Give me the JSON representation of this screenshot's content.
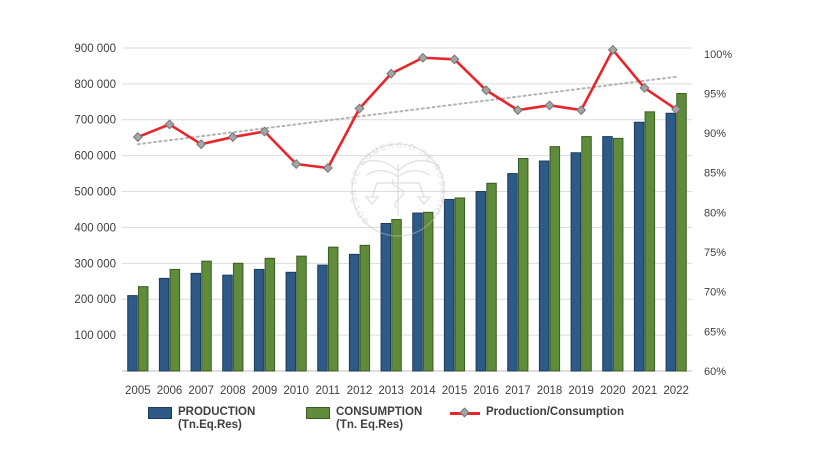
{
  "page": {
    "background": "#ffffff",
    "title": ""
  },
  "chart_data": {
    "type": "bar",
    "subtype": "combo-bar-line",
    "title": "",
    "categories": [
      "2005",
      "2006",
      "2007",
      "2008",
      "2009",
      "2010",
      "2011",
      "2012",
      "2013",
      "2014",
      "2015",
      "2016",
      "2017",
      "2018",
      "2019",
      "2020",
      "2021",
      "2022"
    ],
    "series": [
      {
        "name": "PRODUCTION (Tn.Eq.Res)",
        "type": "bar",
        "axis": "left",
        "color": "#2d5a87",
        "border_color": "#1c3b5a",
        "values": [
          210000,
          258000,
          272000,
          267000,
          283000,
          275000,
          295000,
          325000,
          411000,
          440000,
          478000,
          500000,
          550000,
          585000,
          608000,
          653000,
          693000,
          718000
        ]
      },
      {
        "name": "CONSUMPTION (Tn. Eq.Res)",
        "type": "bar",
        "axis": "left",
        "color": "#5f8c3a",
        "border_color": "#3c5a22",
        "values": [
          235000,
          283000,
          306000,
          300000,
          314000,
          320000,
          345000,
          350000,
          422000,
          442000,
          482000,
          523000,
          592000,
          625000,
          653000,
          648000,
          722000,
          773000
        ]
      },
      {
        "name": "Production/Consumption",
        "type": "line",
        "axis": "right",
        "color": "#e8252a",
        "marker": "diamond",
        "marker_fill": "#a5a5a5",
        "marker_stroke": "#757575",
        "values_percent": [
          89.5,
          91.1,
          88.6,
          89.5,
          90.2,
          86.1,
          85.6,
          93.1,
          97.5,
          99.5,
          99.3,
          95.4,
          92.9,
          93.5,
          92.9,
          100.5,
          95.7,
          93.0
        ]
      }
    ],
    "trendline": {
      "style": "dotted",
      "color": "#b3b3b3",
      "axis": "right",
      "start_percent": 88.6,
      "end_percent": 97.1
    },
    "left_axis": {
      "min": 0,
      "max": 950000,
      "tick_step": 100000,
      "tick_labels": [
        "100 000",
        "200 000",
        "300 000",
        "400 000",
        "500 000",
        "600 000",
        "700 000",
        "800 000",
        "900 000"
      ]
    },
    "right_axis": {
      "min": 60,
      "max": 103,
      "tick_step": 5,
      "tick_labels": [
        "60%",
        "65%",
        "70%",
        "75%",
        "80%",
        "85%",
        "90%",
        "95%",
        "100%"
      ]
    },
    "grid": "horizontal",
    "gridline_color": "#dcdcdc",
    "axis_line_color": "#bfbfbf",
    "axis_text_color": "#3f3f3f",
    "legend_position": "bottom",
    "watermark": {
      "text": "BOLSA DE COMERCIO DE ROSARIO",
      "color": "#c0c0c0"
    }
  },
  "legend": {
    "production_label": "PRODUCTION",
    "production_sub": "(Tn.Eq.Res)",
    "consumption_label": "CONSUMPTION",
    "consumption_sub": "(Tn. Eq.Res)",
    "ratio_label": "Production/Consumption"
  }
}
